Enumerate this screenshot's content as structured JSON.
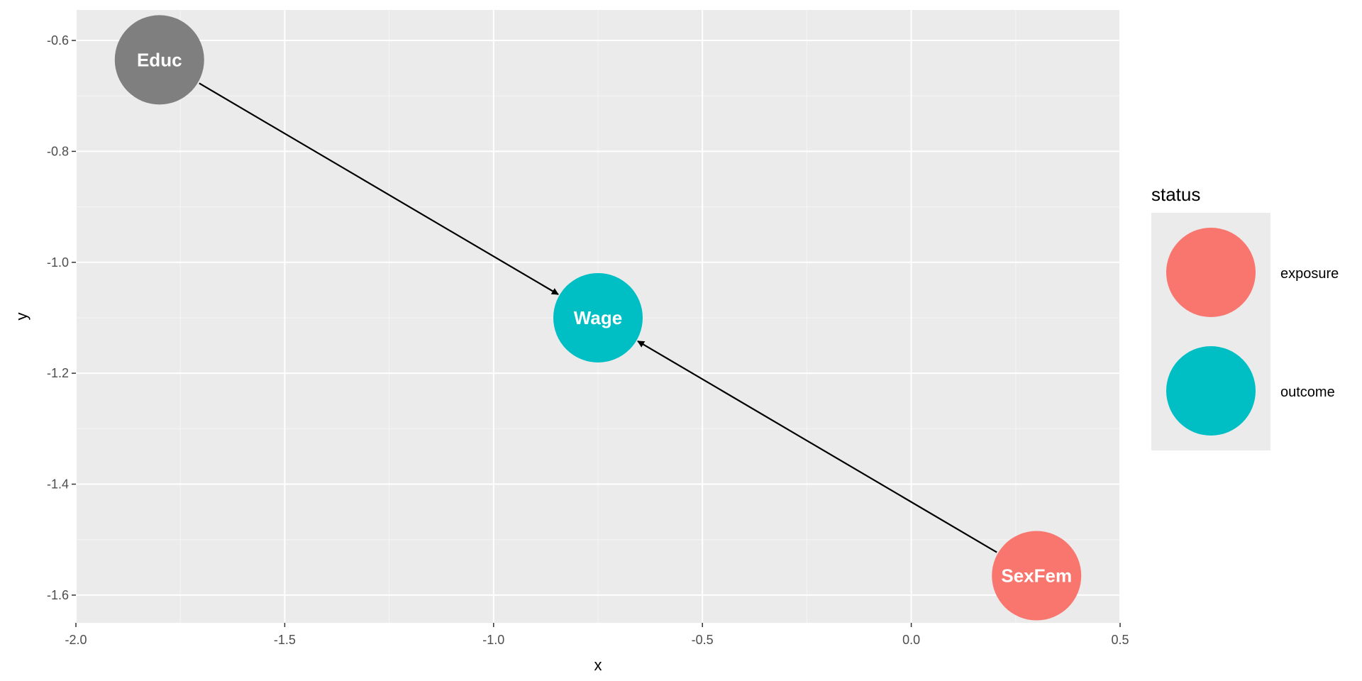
{
  "chart_data": {
    "type": "scatter",
    "title": "",
    "xlabel": "x",
    "ylabel": "y",
    "xlim": [
      -2.0,
      0.5
    ],
    "ylim": [
      -1.65,
      -0.545
    ],
    "x_ticks": [
      -2.0,
      -1.5,
      -1.0,
      -0.5,
      0.0,
      0.5
    ],
    "x_tick_labels": [
      "-2.0",
      "-1.5",
      "-1.0",
      "-0.5",
      "0.0",
      "0.5"
    ],
    "y_ticks": [
      -0.6,
      -0.8,
      -1.0,
      -1.2,
      -1.4,
      -1.6
    ],
    "y_tick_labels": [
      "-0.6",
      "-0.8",
      "-1.0",
      "-1.2",
      "-1.4",
      "-1.6"
    ],
    "grid": true,
    "legend_position": "right",
    "nodes": [
      {
        "name": "Educ",
        "x": -1.8,
        "y": -0.635,
        "status": null,
        "color": "#7f7f7f"
      },
      {
        "name": "Wage",
        "x": -0.75,
        "y": -1.1,
        "status": "outcome",
        "color": "#00bfc4"
      },
      {
        "name": "SexFem",
        "x": 0.3,
        "y": -1.565,
        "status": "exposure",
        "color": "#f8766d"
      }
    ],
    "edges": [
      {
        "from": "Educ",
        "to": "Wage"
      },
      {
        "from": "SexFem",
        "to": "Wage"
      }
    ],
    "legend": {
      "title": "status",
      "entries": [
        {
          "label": "exposure",
          "color": "#f8766d"
        },
        {
          "label": "outcome",
          "color": "#00bfc4"
        }
      ]
    }
  }
}
